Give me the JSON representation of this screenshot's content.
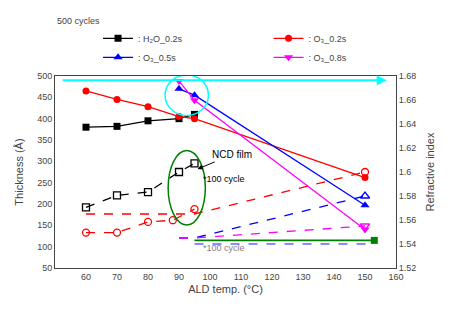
{
  "chart_data": {
    "type": "line",
    "xlabel": "ALD temp. (°C)",
    "ylabel": "Thickness (Å)",
    "y2label": "Refractive index",
    "xlim": [
      50,
      160
    ],
    "xticks": [
      60,
      70,
      80,
      90,
      100,
      110,
      120,
      130,
      140,
      150,
      160
    ],
    "ylim": [
      50,
      500
    ],
    "yticks": [
      50,
      100,
      150,
      200,
      250,
      300,
      350,
      400,
      450,
      500
    ],
    "y2lim": [
      1.52,
      1.68
    ],
    "y2ticks": [
      1.52,
      1.54,
      1.56,
      1.58,
      1.6,
      1.62,
      1.64,
      1.66,
      1.68
    ],
    "grid": false,
    "legend": "top",
    "series": [
      {
        "name": ": H₂O_0.2s",
        "color": "black",
        "marker": "square",
        "line_style": "solid",
        "x": [
          60,
          70,
          80,
          90,
          95
        ],
        "values": [
          380,
          382,
          395,
          400,
          410
        ]
      },
      {
        "name": ": O₃_0.2s",
        "color": "red",
        "marker": "circle",
        "line_style": "solid",
        "x": [
          60,
          70,
          80,
          90,
          95,
          150
        ],
        "values": [
          465,
          445,
          428,
          405,
          400,
          262
        ]
      },
      {
        "name": ": O₃_0.5s",
        "color": "blue",
        "marker": "triangle-up",
        "line_style": "solid",
        "x": [
          90,
          95,
          150
        ],
        "values": [
          470,
          455,
          197
        ]
      },
      {
        "name": ": O₃_0.8s",
        "color": "magenta",
        "marker": "triangle-down",
        "line_style": "solid",
        "x": [
          90,
          95,
          150
        ],
        "values": [
          488,
          443,
          140
        ]
      },
      {
        "color": "black",
        "marker": "square-open",
        "line_style": "dashed",
        "x": [
          60,
          70,
          80,
          90,
          95
        ],
        "values": [
          192,
          220,
          228,
          275,
          295
        ]
      },
      {
        "color": "red",
        "marker": "circle-open",
        "line_style": "dashed",
        "x": [
          60,
          70,
          80,
          88,
          95
        ],
        "values": [
          133,
          133,
          158,
          162,
          188
        ]
      },
      {
        "color": "red",
        "marker": "none",
        "line_style": "dashed",
        "axis": "y2",
        "x": [
          60,
          70,
          80,
          90,
          95,
          150
        ],
        "values": [
          1.565,
          1.565,
          1.565,
          1.565,
          1.565,
          1.6
        ]
      },
      {
        "color": "red",
        "marker": "circle-open",
        "line_style": "none",
        "axis": "y2",
        "x": [
          150
        ],
        "values": [
          1.6
        ]
      },
      {
        "color": "blue",
        "marker": "none",
        "line_style": "dashed",
        "axis": "y2",
        "x": [
          90,
          95,
          150
        ],
        "values": [
          1.545,
          1.545,
          1.58
        ]
      },
      {
        "color": "blue",
        "marker": "triangle-up-open",
        "line_style": "none",
        "axis": "y2",
        "x": [
          150
        ],
        "values": [
          1.58
        ]
      },
      {
        "color": "magenta",
        "marker": "none",
        "line_style": "dashed",
        "axis": "y2",
        "x": [
          90,
          95,
          150
        ],
        "values": [
          1.545,
          1.545,
          1.555
        ]
      },
      {
        "color": "magenta",
        "marker": "triangle-down-open",
        "line_style": "none",
        "axis": "y2",
        "x": [
          150
        ],
        "values": [
          1.555
        ]
      },
      {
        "color": "green",
        "marker": "none",
        "line_style": "solid",
        "axis": "y2",
        "x": [
          95,
          153
        ],
        "values": [
          1.543,
          1.543
        ]
      },
      {
        "color": "green",
        "marker": "square",
        "line_style": "none",
        "axis": "y2",
        "x": [
          153
        ],
        "values": [
          1.543
        ]
      },
      {
        "color": "#6666ff",
        "marker": "none",
        "line_style": "dashed",
        "axis": "y2",
        "x": [
          95,
          153
        ],
        "values": [
          1.54,
          1.54
        ]
      }
    ],
    "arrows": [
      {
        "x0": 52,
        "x1": 157,
        "y": 490,
        "color": "cyan"
      }
    ],
    "ellipses": [
      {
        "cx": 92.5,
        "cy": 455,
        "width": 14,
        "height": 95,
        "color": "cyan"
      },
      {
        "cx": 92.5,
        "cy": 238,
        "width": 12,
        "height": 175,
        "color": "green"
      }
    ],
    "annotations": [
      {
        "text": "NCD film",
        "x": 107,
        "y": 315,
        "arrow_x": 96,
        "arrow_y": 282,
        "color": "black"
      },
      {
        "text": "*100 cycle",
        "x": 97,
        "y": 242,
        "color": "black"
      },
      {
        "text": "*100 cycle",
        "x": 97,
        "y": 80,
        "color": "gray"
      },
      {
        "text": "500 cycles"
      }
    ]
  }
}
